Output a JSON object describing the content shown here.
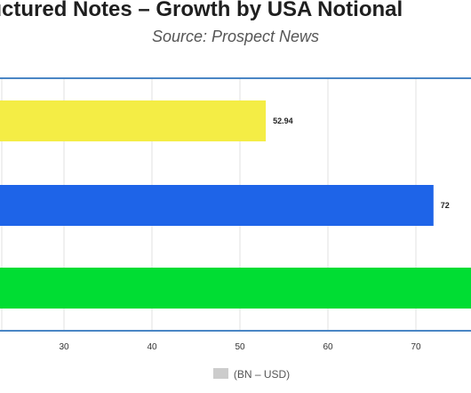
{
  "chart_data": {
    "type": "bar",
    "orientation": "horizontal",
    "title": "Structured Notes – Growth by USA Notional",
    "subtitle": "Source: Prospect News",
    "xlabel": "",
    "ylabel": "",
    "x_ticks": [
      "30",
      "40",
      "50",
      "60",
      "70"
    ],
    "series": [
      {
        "label": "52.94",
        "value": 52.94,
        "color": "#f4ed45"
      },
      {
        "label": "72",
        "value": 72,
        "color": "#1e64e8"
      },
      {
        "value": 80,
        "color": "#00dd33"
      }
    ],
    "legend": {
      "label": "(BN – USD)",
      "color": "#cccccc",
      "placement": "bottom"
    },
    "grid": true,
    "border_color": "#4a86c5"
  }
}
